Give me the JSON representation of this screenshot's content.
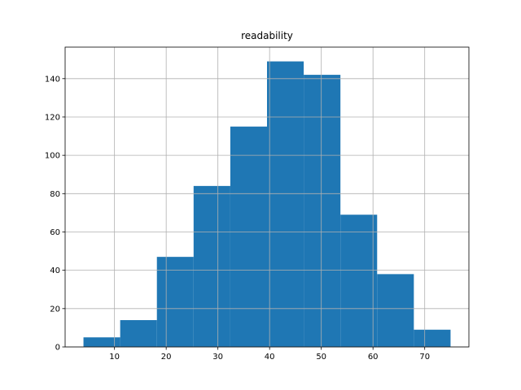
{
  "chart_data": {
    "type": "bar",
    "title": "readability",
    "xlabel": "",
    "ylabel": "",
    "bin_edges": [
      4.0,
      11.1,
      18.2,
      25.3,
      32.4,
      39.5,
      46.6,
      53.7,
      60.8,
      67.9,
      75.0
    ],
    "values": [
      5,
      14,
      47,
      84,
      115,
      149,
      142,
      69,
      38,
      9
    ],
    "xlim": [
      0.45,
      78.55
    ],
    "ylim": [
      0,
      156.45
    ],
    "x_ticks": [
      10,
      20,
      30,
      40,
      50,
      60,
      70
    ],
    "y_ticks": [
      0,
      20,
      40,
      60,
      80,
      100,
      120,
      140
    ],
    "grid": true,
    "bar_color": "#1f77b4"
  }
}
